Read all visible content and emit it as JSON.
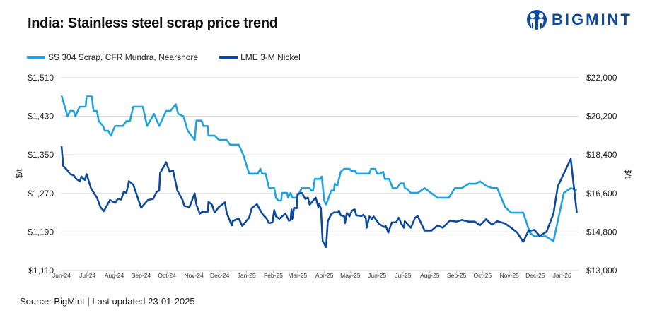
{
  "title": "India: Stainless steel scrap price trend",
  "logo": {
    "text": "BIGMINT",
    "icon": "bigmint-person-logo-icon"
  },
  "source": "Source: BigMint | Last updated 23-01-2025",
  "colors": {
    "ss304": "#1fa3dc",
    "nickel": "#0d4a9b",
    "grid": "#d9d9d9",
    "text": "#222222"
  },
  "chart_data": {
    "type": "line",
    "title": "India: Stainless steel scrap price trend",
    "legend_position": "top-left",
    "grid": true,
    "xlim": [
      "2024-06-01",
      "2026-01-20"
    ],
    "x_tick_labels": [
      "Jun-24",
      "Jul-24",
      "Aug-24",
      "Sep-24",
      "Oct-24",
      "Nov-24",
      "Dec-24",
      "Jan-25",
      "Feb-25",
      "Mar-25",
      "Apr-25",
      "May-25",
      "Jun-25",
      "Jul-25",
      "Aug-25",
      "Sep-25",
      "Oct-25",
      "Nov-25",
      "Dec-25",
      "Jan-26"
    ],
    "x_tick_dates": [
      "2024-06-01",
      "2024-07-01",
      "2024-08-01",
      "2024-09-01",
      "2024-10-01",
      "2024-11-01",
      "2024-12-01",
      "2025-01-01",
      "2025-02-01",
      "2025-03-01",
      "2025-04-01",
      "2025-05-01",
      "2025-06-01",
      "2025-07-01",
      "2025-08-01",
      "2025-09-01",
      "2025-10-01",
      "2025-11-01",
      "2025-12-01",
      "2026-01-01"
    ],
    "y_left": {
      "label": "$/t",
      "ylim": [
        1110,
        1510
      ],
      "tick_labels": [
        "$1,110",
        "$1,190",
        "$1,270",
        "$1,350",
        "$1,430",
        "$1,510"
      ],
      "ticks": [
        1110,
        1190,
        1270,
        1350,
        1430,
        1510
      ]
    },
    "y_right": {
      "label": "$/t",
      "ylim": [
        13000,
        22000
      ],
      "tick_labels": [
        "$13,000",
        "$14,800",
        "$16,600",
        "$18,400",
        "$20,200",
        "$22,000"
      ],
      "ticks": [
        13000,
        14800,
        16600,
        18400,
        20200,
        22000
      ]
    },
    "series": [
      {
        "name": "SS 304 Scrap, CFR Mundra, Nearshore",
        "axis": "left",
        "color": "#1fa3dc",
        "points": [
          [
            "2024-06-01",
            1473
          ],
          [
            "2024-06-08",
            1430
          ],
          [
            "2024-06-11",
            1441
          ],
          [
            "2024-06-15",
            1441
          ],
          [
            "2024-06-17",
            1430
          ],
          [
            "2024-06-22",
            1450
          ],
          [
            "2024-06-29",
            1450
          ],
          [
            "2024-06-30",
            1471
          ],
          [
            "2024-07-06",
            1471
          ],
          [
            "2024-07-08",
            1441
          ],
          [
            "2024-07-12",
            1441
          ],
          [
            "2024-07-14",
            1420
          ],
          [
            "2024-07-19",
            1410
          ],
          [
            "2024-07-21",
            1400
          ],
          [
            "2024-07-25",
            1400
          ],
          [
            "2024-07-28",
            1390
          ],
          [
            "2024-08-02",
            1410
          ],
          [
            "2024-08-11",
            1410
          ],
          [
            "2024-08-15",
            1420
          ],
          [
            "2024-08-19",
            1420
          ],
          [
            "2024-08-23",
            1450
          ],
          [
            "2024-09-03",
            1450
          ],
          [
            "2024-09-08",
            1410
          ],
          [
            "2024-09-16",
            1435
          ],
          [
            "2024-09-22",
            1410
          ],
          [
            "2024-09-30",
            1441
          ],
          [
            "2024-10-05",
            1441
          ],
          [
            "2024-10-11",
            1455
          ],
          [
            "2024-10-14",
            1435
          ],
          [
            "2024-10-20",
            1430
          ],
          [
            "2024-10-25",
            1400
          ],
          [
            "2024-11-02",
            1381
          ],
          [
            "2024-11-04",
            1421
          ],
          [
            "2024-11-10",
            1421
          ],
          [
            "2024-11-12",
            1410
          ],
          [
            "2024-11-17",
            1410
          ],
          [
            "2024-11-18",
            1390
          ],
          [
            "2024-11-25",
            1390
          ],
          [
            "2024-11-30",
            1381
          ],
          [
            "2024-12-09",
            1381
          ],
          [
            "2024-12-13",
            1371
          ],
          [
            "2024-12-23",
            1371
          ],
          [
            "2024-12-28",
            1351
          ],
          [
            "2025-01-04",
            1311
          ],
          [
            "2025-01-14",
            1311
          ],
          [
            "2025-01-17",
            1321
          ],
          [
            "2025-01-19",
            1311
          ],
          [
            "2025-01-23",
            1311
          ],
          [
            "2025-01-27",
            1281
          ],
          [
            "2025-02-02",
            1281
          ],
          [
            "2025-02-04",
            1261
          ],
          [
            "2025-02-07",
            1255
          ],
          [
            "2025-02-10",
            1255
          ],
          [
            "2025-02-11",
            1271
          ],
          [
            "2025-02-17",
            1271
          ],
          [
            "2025-02-18",
            1261
          ],
          [
            "2025-02-21",
            1271
          ],
          [
            "2025-02-23",
            1261
          ],
          [
            "2025-02-28",
            1261
          ],
          [
            "2025-03-06",
            1281
          ],
          [
            "2025-03-15",
            1281
          ],
          [
            "2025-03-17",
            1276
          ],
          [
            "2025-03-19",
            1276
          ],
          [
            "2025-03-21",
            1300
          ],
          [
            "2025-03-27",
            1300
          ],
          [
            "2025-03-29",
            1305
          ],
          [
            "2025-04-01",
            1254
          ],
          [
            "2025-04-03",
            1247
          ],
          [
            "2025-04-09",
            1276
          ],
          [
            "2025-04-12",
            1276
          ],
          [
            "2025-04-13",
            1290
          ],
          [
            "2025-04-16",
            1286
          ],
          [
            "2025-04-20",
            1315
          ],
          [
            "2025-04-24",
            1321
          ],
          [
            "2025-04-30",
            1321
          ],
          [
            "2025-05-02",
            1317
          ],
          [
            "2025-05-07",
            1317
          ],
          [
            "2025-05-08",
            1311
          ],
          [
            "2025-05-23",
            1311
          ],
          [
            "2025-05-25",
            1321
          ],
          [
            "2025-05-30",
            1321
          ],
          [
            "2025-06-01",
            1311
          ],
          [
            "2025-06-05",
            1311
          ],
          [
            "2025-06-08",
            1315
          ],
          [
            "2025-06-10",
            1300
          ],
          [
            "2025-06-15",
            1300
          ],
          [
            "2025-06-19",
            1281
          ],
          [
            "2025-06-24",
            1281
          ],
          [
            "2025-06-28",
            1291
          ],
          [
            "2025-07-02",
            1291
          ],
          [
            "2025-07-03",
            1281
          ],
          [
            "2025-07-06",
            1279
          ],
          [
            "2025-07-10",
            1271
          ],
          [
            "2025-07-18",
            1271
          ],
          [
            "2025-07-26",
            1281
          ],
          [
            "2025-08-10",
            1261
          ],
          [
            "2025-08-23",
            1261
          ],
          [
            "2025-08-30",
            1281
          ],
          [
            "2025-09-07",
            1281
          ],
          [
            "2025-09-15",
            1290
          ],
          [
            "2025-09-23",
            1290
          ],
          [
            "2025-09-28",
            1295
          ],
          [
            "2025-10-05",
            1286
          ],
          [
            "2025-10-12",
            1281
          ],
          [
            "2025-10-18",
            1281
          ],
          [
            "2025-10-27",
            1242
          ],
          [
            "2025-11-03",
            1230
          ],
          [
            "2025-11-17",
            1230
          ],
          [
            "2025-11-25",
            1188
          ],
          [
            "2025-11-30",
            1181
          ],
          [
            "2025-12-13",
            1181
          ],
          [
            "2025-12-22",
            1171
          ],
          [
            "2026-01-03",
            1271
          ],
          [
            "2026-01-11",
            1281
          ],
          [
            "2026-01-15",
            1279
          ],
          [
            "2026-01-18",
            1276
          ]
        ]
      },
      {
        "name": "LME 3-M Nickel",
        "axis": "right",
        "color": "#0d4a9b",
        "points": [
          [
            "2024-06-01",
            18817
          ],
          [
            "2024-06-03",
            17884
          ],
          [
            "2024-06-08",
            17665
          ],
          [
            "2024-06-11",
            17500
          ],
          [
            "2024-06-15",
            17445
          ],
          [
            "2024-06-18",
            17280
          ],
          [
            "2024-06-22",
            17170
          ],
          [
            "2024-06-24",
            17390
          ],
          [
            "2024-06-28",
            17225
          ],
          [
            "2024-06-30",
            17500
          ],
          [
            "2024-07-05",
            16841
          ],
          [
            "2024-07-12",
            16402
          ],
          [
            "2024-07-16",
            15963
          ],
          [
            "2024-07-20",
            15777
          ],
          [
            "2024-07-27",
            16293
          ],
          [
            "2024-08-02",
            16160
          ],
          [
            "2024-08-05",
            16347
          ],
          [
            "2024-08-09",
            16310
          ],
          [
            "2024-08-12",
            16677
          ],
          [
            "2024-08-15",
            16620
          ],
          [
            "2024-08-18",
            17170
          ],
          [
            "2024-08-23",
            17006
          ],
          [
            "2024-09-01",
            15930
          ],
          [
            "2024-09-09",
            16293
          ],
          [
            "2024-09-15",
            16347
          ],
          [
            "2024-09-19",
            16677
          ],
          [
            "2024-09-22",
            16732
          ],
          [
            "2024-09-23",
            17555
          ],
          [
            "2024-09-30",
            18049
          ],
          [
            "2024-10-04",
            17610
          ],
          [
            "2024-10-08",
            17665
          ],
          [
            "2024-10-13",
            16732
          ],
          [
            "2024-10-19",
            16293
          ],
          [
            "2024-10-21",
            16018
          ],
          [
            "2024-10-27",
            15963
          ],
          [
            "2024-11-02",
            16600
          ],
          [
            "2024-11-04",
            16073
          ],
          [
            "2024-11-08",
            15656
          ],
          [
            "2024-11-11",
            15744
          ],
          [
            "2024-11-17",
            15744
          ],
          [
            "2024-11-18",
            16205
          ],
          [
            "2024-11-22",
            16073
          ],
          [
            "2024-11-25",
            15711
          ],
          [
            "2024-11-30",
            15963
          ],
          [
            "2024-12-07",
            16183
          ],
          [
            "2024-12-09",
            15689
          ],
          [
            "2024-12-15",
            15107
          ],
          [
            "2024-12-16",
            15305
          ],
          [
            "2024-12-23",
            15436
          ],
          [
            "2024-12-27",
            15085
          ],
          [
            "2025-01-04",
            15469
          ],
          [
            "2025-01-07",
            15909
          ],
          [
            "2025-01-13",
            16095
          ],
          [
            "2025-01-19",
            15656
          ],
          [
            "2025-01-24",
            15436
          ],
          [
            "2025-01-27",
            15217
          ],
          [
            "2025-01-31",
            15250
          ],
          [
            "2025-02-02",
            15821
          ],
          [
            "2025-02-04",
            15524
          ],
          [
            "2025-02-08",
            15414
          ],
          [
            "2025-02-11",
            15524
          ],
          [
            "2025-02-15",
            15656
          ],
          [
            "2025-02-19",
            15327
          ],
          [
            "2025-02-21",
            15360
          ],
          [
            "2025-02-22",
            15854
          ],
          [
            "2025-02-23",
            15414
          ],
          [
            "2025-02-25",
            15930
          ],
          [
            "2025-02-28",
            15909
          ],
          [
            "2025-03-01",
            16567
          ],
          [
            "2025-03-06",
            16622
          ],
          [
            "2025-03-10",
            16347
          ],
          [
            "2025-03-13",
            16402
          ],
          [
            "2025-03-15",
            16073
          ],
          [
            "2025-03-22",
            16402
          ],
          [
            "2025-03-25",
            15963
          ],
          [
            "2025-03-26",
            16128
          ],
          [
            "2025-03-28",
            15909
          ],
          [
            "2025-03-30",
            14372
          ],
          [
            "2025-04-03",
            14097
          ],
          [
            "2025-04-05",
            15305
          ],
          [
            "2025-04-09",
            15634
          ],
          [
            "2025-04-12",
            15711
          ],
          [
            "2025-04-17",
            15711
          ],
          [
            "2025-04-18",
            15799
          ],
          [
            "2025-04-20",
            15579
          ],
          [
            "2025-04-24",
            15524
          ],
          [
            "2025-04-25",
            15217
          ],
          [
            "2025-04-27",
            15689
          ],
          [
            "2025-04-30",
            15524
          ],
          [
            "2025-05-03",
            15799
          ],
          [
            "2025-05-06",
            15854
          ],
          [
            "2025-05-08",
            15579
          ],
          [
            "2025-05-14",
            15546
          ],
          [
            "2025-05-16",
            15601
          ],
          [
            "2025-05-19",
            15436
          ],
          [
            "2025-05-20",
            14997
          ],
          [
            "2025-05-23",
            15524
          ],
          [
            "2025-05-26",
            15414
          ],
          [
            "2025-05-28",
            15524
          ],
          [
            "2025-06-03",
            15195
          ],
          [
            "2025-06-09",
            15030
          ],
          [
            "2025-06-11",
            15085
          ],
          [
            "2025-06-14",
            14778
          ],
          [
            "2025-06-18",
            15250
          ],
          [
            "2025-06-23",
            15250
          ],
          [
            "2025-06-26",
            15469
          ],
          [
            "2025-06-29",
            15195
          ],
          [
            "2025-07-02",
            14997
          ],
          [
            "2025-07-03",
            15305
          ],
          [
            "2025-07-10",
            14997
          ],
          [
            "2025-07-15",
            15469
          ],
          [
            "2025-07-18",
            15546
          ],
          [
            "2025-07-26",
            14866
          ],
          [
            "2025-08-03",
            14866
          ],
          [
            "2025-08-10",
            15107
          ],
          [
            "2025-08-16",
            14997
          ],
          [
            "2025-08-24",
            15327
          ],
          [
            "2025-09-01",
            15283
          ],
          [
            "2025-09-07",
            15360
          ],
          [
            "2025-09-15",
            15283
          ],
          [
            "2025-09-22",
            15283
          ],
          [
            "2025-09-28",
            15107
          ],
          [
            "2025-10-05",
            15393
          ],
          [
            "2025-10-12",
            15140
          ],
          [
            "2025-10-18",
            15305
          ],
          [
            "2025-10-27",
            15195
          ],
          [
            "2025-11-03",
            14997
          ],
          [
            "2025-11-10",
            14778
          ],
          [
            "2025-11-17",
            14339
          ],
          [
            "2025-11-23",
            14844
          ],
          [
            "2025-11-30",
            14899
          ],
          [
            "2025-12-06",
            14614
          ],
          [
            "2025-12-14",
            14811
          ],
          [
            "2025-12-22",
            15656
          ],
          [
            "2025-12-27",
            16929
          ],
          [
            "2026-01-11",
            18213
          ],
          [
            "2026-01-18",
            15689
          ]
        ]
      }
    ]
  }
}
